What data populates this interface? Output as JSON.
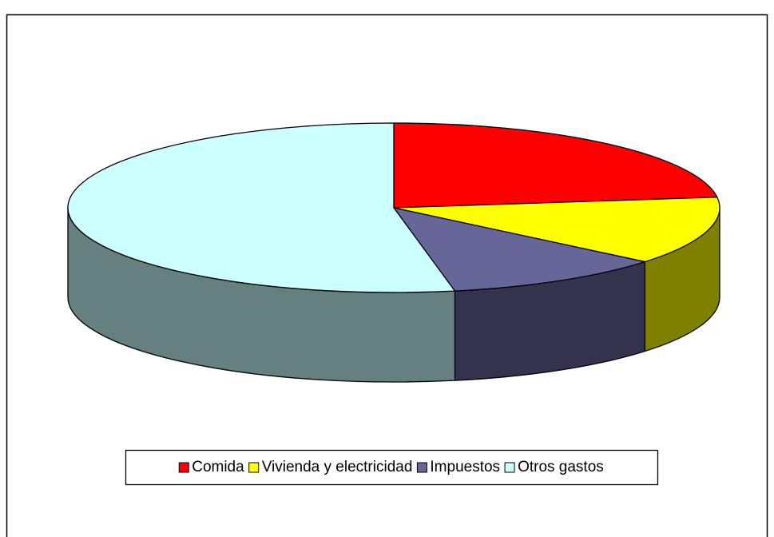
{
  "chart_data": {
    "type": "pie3d",
    "categories": [
      "Comida",
      "Vivienda y electricidad",
      "Impuestos",
      "Otros gastos"
    ],
    "values": [
      23,
      13,
      11,
      53
    ],
    "colors": [
      "#ff0000",
      "#ffff00",
      "#666699",
      "#ccffff"
    ],
    "legend": "bottom"
  }
}
